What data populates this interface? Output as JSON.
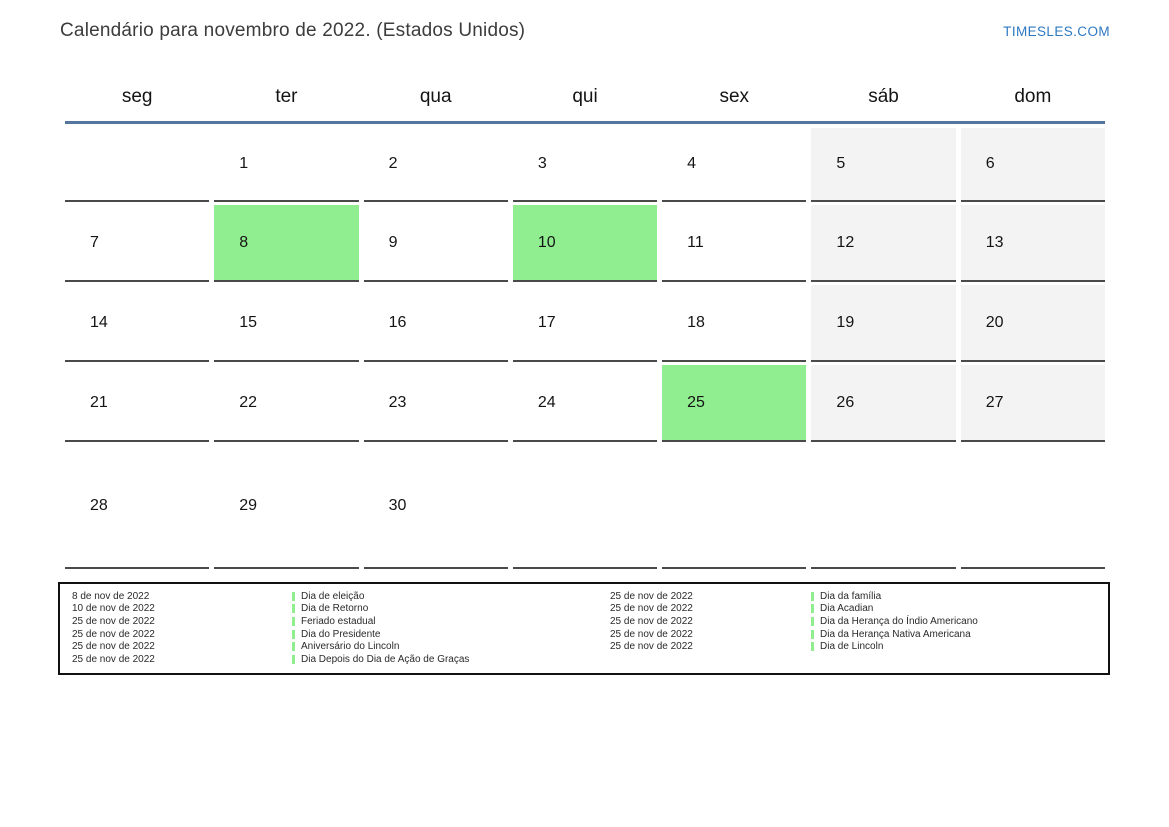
{
  "header": {
    "title": "Calendário para novembro de 2022. (Estados Unidos)",
    "site_link": "TIMESLES.COM"
  },
  "calendar": {
    "weekdays": [
      "seg",
      "ter",
      "qua",
      "qui",
      "sex",
      "sáb",
      "dom"
    ],
    "weeks": [
      [
        "",
        "1",
        "2",
        "3",
        "4",
        "5",
        "6"
      ],
      [
        "7",
        "8",
        "9",
        "10",
        "11",
        "12",
        "13"
      ],
      [
        "14",
        "15",
        "16",
        "17",
        "18",
        "19",
        "20"
      ],
      [
        "21",
        "22",
        "23",
        "24",
        "25",
        "26",
        "27"
      ],
      [
        "28",
        "29",
        "30",
        "",
        "",
        "",
        ""
      ]
    ],
    "highlighted_holiday_days": [
      "8",
      "10",
      "25"
    ],
    "shaded_weekend_days": [
      "5",
      "6",
      "12",
      "13",
      "19",
      "20",
      "26",
      "27"
    ]
  },
  "legend": {
    "left": [
      {
        "date": "8 de nov de 2022",
        "name": "Dia de eleição"
      },
      {
        "date": "10 de nov de 2022",
        "name": "Dia de Retorno"
      },
      {
        "date": "25 de nov de 2022",
        "name": "Feriado estadual"
      },
      {
        "date": "25 de nov de 2022",
        "name": "Dia do Presidente"
      },
      {
        "date": "25 de nov de 2022",
        "name": "Aniversário do Lincoln"
      },
      {
        "date": "25 de nov de 2022",
        "name": "Dia Depois do Dia de Ação de Graças"
      }
    ],
    "right": [
      {
        "date": "25 de nov de 2022",
        "name": "Dia da família"
      },
      {
        "date": "25 de nov de 2022",
        "name": "Dia Acadian"
      },
      {
        "date": "25 de nov de 2022",
        "name": "Dia da Herança do Índio Americano"
      },
      {
        "date": "25 de nov de 2022",
        "name": "Dia da Herança Nativa Americana"
      },
      {
        "date": "25 de nov de 2022",
        "name": "Dia de Lincoln"
      }
    ]
  },
  "colors": {
    "holiday_green": "#90ee90",
    "weekend_gray": "#f3f3f3",
    "header_line_blue": "#54759e",
    "link_blue": "#2e78c2",
    "cell_border": "#4a4a4a"
  }
}
